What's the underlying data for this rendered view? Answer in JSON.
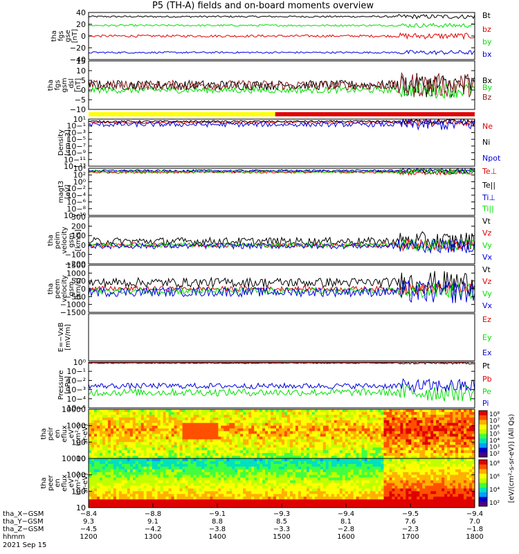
{
  "title": "P5 (TH-A) fields and on-board moments overview",
  "date": "2021 Sep 15",
  "colors": {
    "black": "#000000",
    "red": "#e00000",
    "green": "#00e000",
    "blue": "#0000e0",
    "yellow": "#ffff00"
  },
  "mode_bar": {
    "segments": [
      {
        "from": 1200,
        "to": 1490,
        "color": "#ffff00"
      },
      {
        "from": 1490,
        "to": 1800,
        "color": "#e00000"
      }
    ]
  },
  "chart_data": [
    {
      "id": "fgs_gse",
      "type": "line",
      "ylabel": [
        "tha",
        "fgs",
        "gse",
        "[nT]"
      ],
      "ticks": [
        "40",
        "20",
        "0",
        "−20",
        "−40"
      ],
      "ylim": [
        -40,
        40
      ],
      "series": [
        {
          "name": "Bt",
          "color": "#000000",
          "level": 33,
          "noise": 1.5
        },
        {
          "name": "bz",
          "color": "#e00000",
          "level": 0,
          "noise": 2
        },
        {
          "name": "by",
          "color": "#00e000",
          "level": 18,
          "noise": 1.5
        },
        {
          "name": "bx",
          "color": "#0000e0",
          "level": -28,
          "noise": 1.5
        }
      ]
    },
    {
      "id": "fgs_gsm",
      "type": "line",
      "ylabel": [
        "tha",
        "fgs",
        "gsm",
        "_dsl",
        "[nT]"
      ],
      "ticks": [
        "15",
        "10",
        "5",
        "0",
        "−5",
        "−10"
      ],
      "ylim": [
        -15,
        15
      ],
      "series": [
        {
          "name": "Bx",
          "color": "#000000",
          "level": 0,
          "noise": 3
        },
        {
          "name": "By",
          "color": "#00e000",
          "level": -3,
          "noise": 2
        },
        {
          "name": "Bz",
          "color": "#8b1a1a",
          "level": 0,
          "noise": 3
        }
      ]
    },
    {
      "id": "density",
      "type": "line",
      "ylabel": [
        "Density",
        "[cm−3]"
      ],
      "ticks": [
        "10¹",
        "10−¹",
        "10−³",
        "10−⁵",
        "10−⁷",
        "10−⁹",
        "10−¹¹",
        "10−¹³"
      ],
      "ylim": [
        -13,
        1
      ],
      "series": [
        {
          "name": "Ne",
          "color": "#e00000",
          "level": 0,
          "noise": 0.4
        },
        {
          "name": "Ni",
          "color": "#000000",
          "level": 0.3,
          "noise": 0.3
        },
        {
          "name": "Npot",
          "color": "#0000e0",
          "level": -0.6,
          "noise": 0.7
        }
      ]
    },
    {
      "id": "temperature",
      "type": "line",
      "ylabel": [
        "magt3",
        "[eV]"
      ],
      "ticks": [
        "10⁴",
        "10²",
        "10⁰",
        "10−²",
        "10−⁴",
        "10−⁶",
        "10−⁸",
        "10−¹⁰"
      ],
      "ylim": [
        -10,
        4
      ],
      "series": [
        {
          "name": "Te⊥",
          "color": "#e00000",
          "level": 2.8,
          "noise": 0.3
        },
        {
          "name": "Te||",
          "color": "#000000",
          "level": 3.1,
          "noise": 0.3
        },
        {
          "name": "Ti⊥",
          "color": "#0000e0",
          "level": 3.3,
          "noise": 0.3
        },
        {
          "name": "Ti||",
          "color": "#00e000",
          "level": 3.0,
          "noise": 0.3
        }
      ]
    },
    {
      "id": "peim_velocity",
      "type": "line",
      "ylabel": [
        "tha",
        "peim",
        "velocity",
        "gsm",
        "[km/s]"
      ],
      "ticks": [
        "300",
        "200",
        "100",
        "0",
        "−100",
        "−200"
      ],
      "ylim": [
        -200,
        300
      ],
      "series": [
        {
          "name": "Vt",
          "color": "#000000",
          "level": 40,
          "noise": 40
        },
        {
          "name": "Vz",
          "color": "#e00000",
          "level": 0,
          "noise": 25
        },
        {
          "name": "Vy",
          "color": "#00e000",
          "level": 0,
          "noise": 25
        },
        {
          "name": "Vx",
          "color": "#0000e0",
          "level": -10,
          "noise": 30
        }
      ]
    },
    {
      "id": "peem_velocity",
      "type": "line",
      "ylabel": [
        "tha",
        "peem",
        "velocity",
        "gsm",
        "[km/s]"
      ],
      "ticks": [
        "1500",
        "1000",
        "500",
        "0",
        "−500",
        "−1000",
        "−1500"
      ],
      "ylim": [
        -1500,
        1500
      ],
      "series": [
        {
          "name": "Vt",
          "color": "#000000",
          "level": 400,
          "noise": 300
        },
        {
          "name": "Vz",
          "color": "#e00000",
          "level": 0,
          "noise": 150
        },
        {
          "name": "Vy",
          "color": "#00e000",
          "level": -150,
          "noise": 200
        },
        {
          "name": "Vx",
          "color": "#0000e0",
          "level": -200,
          "noise": 300
        }
      ]
    },
    {
      "id": "efield",
      "type": "line",
      "ylabel": [
        "E=−VxB",
        "[mV/m]"
      ],
      "ticks": [],
      "ylim": [
        0,
        1
      ],
      "series": [
        {
          "name": "Ez",
          "color": "#e00000"
        },
        {
          "name": "Ey",
          "color": "#00e000"
        },
        {
          "name": "Ex",
          "color": "#0000e0"
        }
      ]
    },
    {
      "id": "pressure",
      "type": "line",
      "ylabel": [
        "Pressure",
        "[nPa]"
      ],
      "ticks": [
        "10⁰",
        "10−¹",
        "10−²",
        "10−³",
        "10−⁴",
        "10−⁵"
      ],
      "ylim": [
        -5,
        0
      ],
      "series": [
        {
          "name": "Pt",
          "color": "#000000",
          "level": -0.1,
          "noise": 0.05
        },
        {
          "name": "Pb",
          "color": "#e00000",
          "level": -0.05,
          "noise": 0.05
        },
        {
          "name": "Pe",
          "color": "#00e000",
          "level": -3.3,
          "noise": 0.4
        },
        {
          "name": "Pi",
          "color": "#0000e0",
          "level": -2.6,
          "noise": 0.3
        }
      ]
    },
    {
      "id": "peir_spectrogram",
      "type": "heatmap",
      "ylabel": [
        "tha",
        "peir",
        "en",
        "eflux",
        "eV",
        "(cm²-s-",
        "sr-eV)"
      ],
      "ticks": [
        "10000",
        "1000",
        "100",
        "10"
      ],
      "ylim": [
        5,
        25000
      ]
    },
    {
      "id": "peer_spectrogram",
      "type": "heatmap",
      "ylabel": [
        "tha",
        "peer",
        "en",
        "eflux",
        "eV",
        "(cm²-s-",
        "sr-eV)"
      ],
      "ticks": [
        "10000",
        "1000",
        "100",
        "10"
      ],
      "ylim": [
        5,
        25000
      ]
    }
  ],
  "colorbar": {
    "label": "[eV/(cm²-s-sr-eV)] (All Qs)",
    "ticks": [
      "10⁸",
      "10⁷",
      "10⁶",
      "10⁵",
      "10⁴",
      "10³",
      "10²"
    ],
    "ticks2": [
      "10⁸",
      "10⁶",
      "10⁴",
      "10²"
    ]
  },
  "x_axis": {
    "time_ticks": [
      1200,
      1300,
      1400,
      1500,
      1600,
      1700,
      1800
    ],
    "rows": [
      {
        "label": "tha_X−GSM",
        "values": [
          "−8.4",
          "−8.8",
          "−9.1",
          "−9.3",
          "−9.4",
          "−9.5",
          "−9.4"
        ]
      },
      {
        "label": "tha_Y−GSM",
        "values": [
          "9.3",
          "9.1",
          "8.8",
          "8.5",
          "8.1",
          "7.6",
          "7.0"
        ]
      },
      {
        "label": "tha_Z−GSM",
        "values": [
          "−4.5",
          "−4.2",
          "−3.8",
          "−3.3",
          "−2.8",
          "−2.3",
          "−1.8"
        ]
      },
      {
        "label": "hhmm",
        "values": [
          "1200",
          "1300",
          "1400",
          "1500",
          "1600",
          "1700",
          "1800"
        ]
      }
    ]
  }
}
